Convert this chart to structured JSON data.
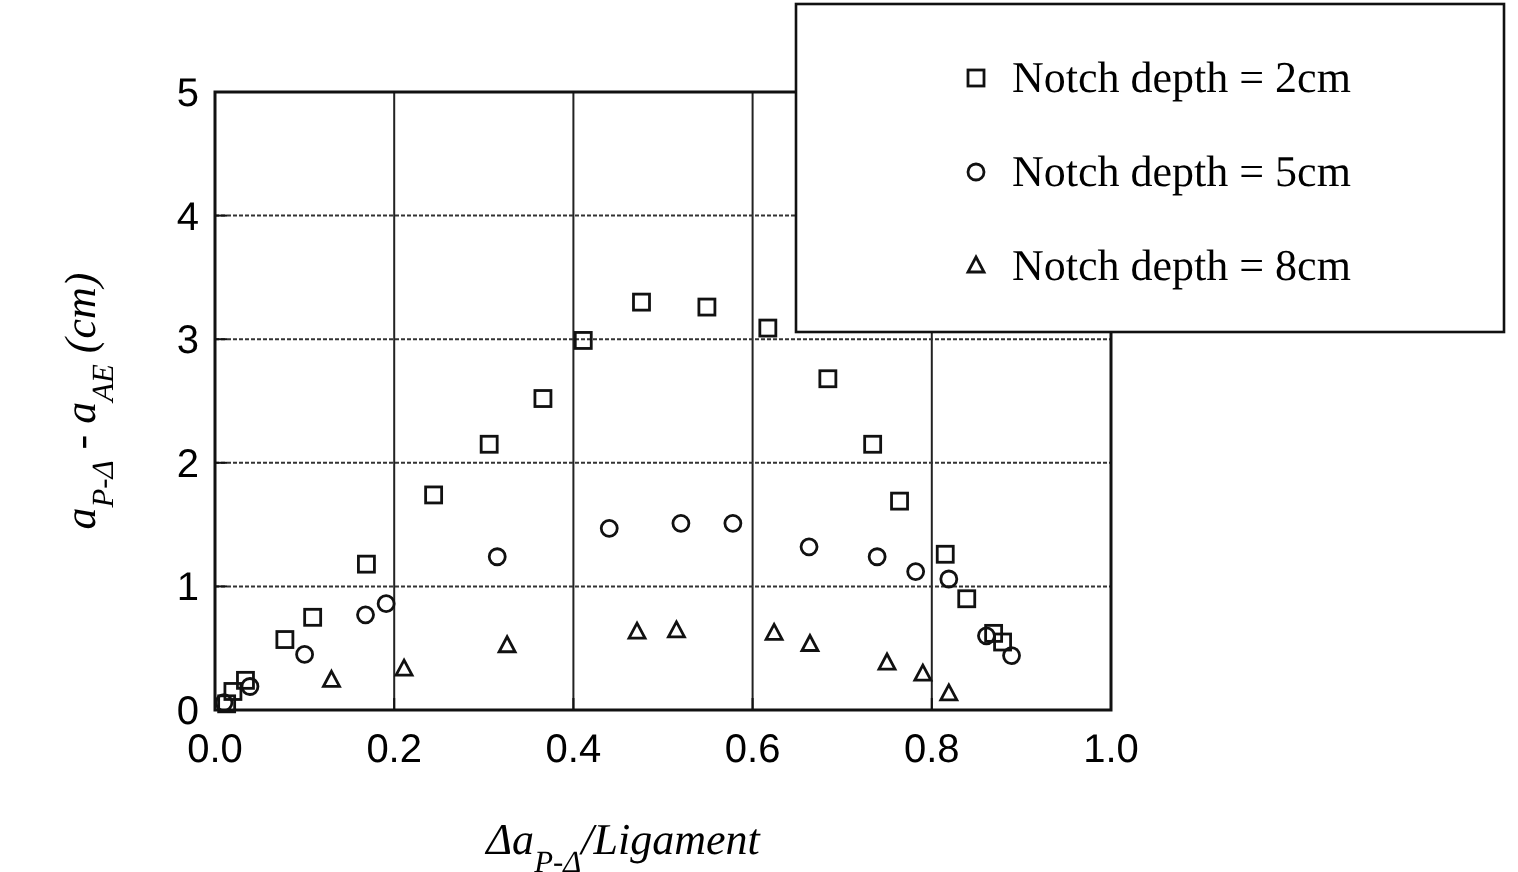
{
  "chart_data": {
    "type": "scatter",
    "xlabel": "Δa$_{P-Δ}$/Ligament",
    "ylabel": "a$_{P-Δ}$ - a$_{AE}$ (cm)",
    "xlim": [
      0,
      1
    ],
    "ylim": [
      0,
      5
    ],
    "xticks": [
      {
        "value": 0,
        "label": "0.0"
      },
      {
        "value": 0.2,
        "label": "0.2"
      },
      {
        "value": 0.4,
        "label": "0.4"
      },
      {
        "value": 0.6,
        "label": "0.6"
      },
      {
        "value": 0.8,
        "label": "0.8"
      },
      {
        "value": 1,
        "label": "1.0"
      }
    ],
    "yticks": [
      0,
      1,
      2,
      3,
      4,
      5
    ],
    "grid": true,
    "legend": "top right",
    "series": [
      {
        "name": "Notch depth = 2cm",
        "color": "#111111",
        "marker": "square",
        "x": [
          0.013,
          0.02,
          0.034,
          0.078,
          0.109,
          0.169,
          0.244,
          0.306,
          0.366,
          0.411,
          0.476,
          0.549,
          0.617,
          0.684,
          0.734,
          0.764,
          0.815,
          0.839,
          0.869,
          0.879
        ],
        "values": [
          0.05,
          0.15,
          0.24,
          0.57,
          0.75,
          1.18,
          1.74,
          2.15,
          2.52,
          2.99,
          3.3,
          3.26,
          3.09,
          2.68,
          2.15,
          1.69,
          1.26,
          0.9,
          0.62,
          0.55
        ]
      },
      {
        "name": "Notch depth = 5cm",
        "color": "#111111",
        "marker": "circle",
        "x": [
          0.01,
          0.039,
          0.1,
          0.168,
          0.191,
          0.315,
          0.44,
          0.52,
          0.578,
          0.663,
          0.739,
          0.782,
          0.819,
          0.861,
          0.889
        ],
        "values": [
          0.06,
          0.19,
          0.45,
          0.77,
          0.86,
          1.24,
          1.47,
          1.51,
          1.51,
          1.32,
          1.24,
          1.12,
          1.06,
          0.6,
          0.44
        ]
      },
      {
        "name": "Notch depth = 8cm",
        "color": "#111111",
        "marker": "triangle",
        "x": [
          0.13,
          0.211,
          0.326,
          0.471,
          0.515,
          0.624,
          0.664,
          0.75,
          0.79,
          0.819
        ],
        "values": [
          0.24,
          0.33,
          0.52,
          0.63,
          0.64,
          0.62,
          0.53,
          0.38,
          0.29,
          0.13
        ]
      }
    ]
  }
}
